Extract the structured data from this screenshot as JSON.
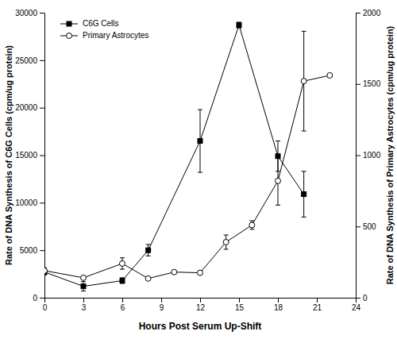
{
  "chart_data": {
    "type": "line",
    "x_label": "Hours Post Serum Up-Shift",
    "y_label": "Rate of DNA Synthesis of C6G Cells (cpm/ug protein)",
    "y2_label": "Rate of DNA Synthesis of Primary Astrocytes (cpm/ug protein)",
    "xlim": [
      0,
      24
    ],
    "xticks": [
      0,
      3,
      6,
      9,
      12,
      15,
      18,
      21,
      24
    ],
    "ylim": [
      0,
      30000
    ],
    "yticks": [
      0,
      5000,
      10000,
      15000,
      20000,
      25000,
      30000
    ],
    "y2lim": [
      0,
      2000
    ],
    "y2ticks": [
      0,
      500,
      1000,
      1500,
      2000
    ],
    "grid": false,
    "legend": "upper left",
    "series": [
      {
        "name": "C6G Cells",
        "color": "#000000",
        "marker": "square",
        "x": [
          0,
          3,
          6,
          8,
          12,
          15,
          18,
          20
        ],
        "values": [
          2700,
          1200,
          1800,
          5000,
          16500,
          28700,
          14900,
          10900
        ],
        "errors": [
          300,
          500,
          300,
          600,
          3300,
          300,
          1600,
          2400
        ]
      },
      {
        "name": "Primary Astrocytes",
        "color": "#000000",
        "marker": "open-circle",
        "axis": "y2",
        "x": [
          0,
          3,
          6,
          8,
          10,
          12,
          14,
          16,
          18,
          20,
          22
        ],
        "values": [
          190,
          140,
          240,
          135,
          180,
          175,
          390,
          510,
          820,
          1520,
          1560
        ],
        "errors": [
          20,
          10,
          40,
          null,
          null,
          null,
          50,
          30,
          170,
          350,
          null
        ]
      }
    ]
  }
}
